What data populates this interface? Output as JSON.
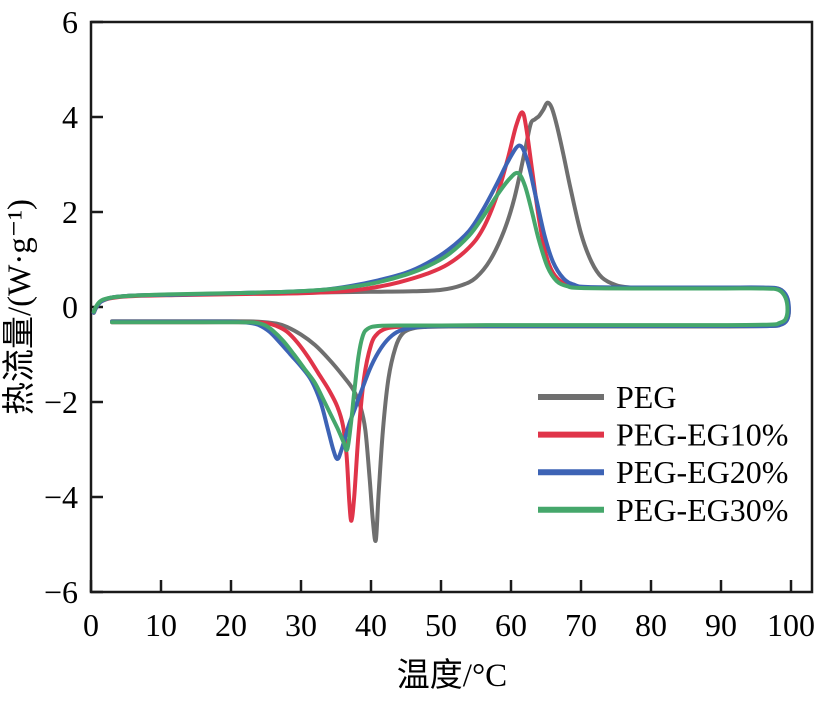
{
  "chart_data": {
    "type": "line",
    "title": "",
    "xlabel": "温度/°C",
    "ylabel": "热流量/(W·g⁻¹)",
    "xlim": [
      0,
      103
    ],
    "ylim": [
      -6,
      6
    ],
    "x_ticks": [
      0,
      10,
      20,
      30,
      40,
      50,
      60,
      70,
      80,
      90,
      100
    ],
    "y_ticks": [
      -6,
      -4,
      -2,
      0,
      2,
      4,
      6
    ],
    "grid": false,
    "legend_position": "inside-right-middle",
    "axis_color": "#1a1a1a",
    "description": "DSC heating (top, melting endotherm up) and cooling (bottom, crystallization exotherm down) loop curves",
    "peaks_summary": {
      "melting_peak_C": {
        "PEG": 65.2,
        "PEG-EG10%": 61.6,
        "PEG-EG20%": 61.2,
        "PEG-EG30%": 61.0
      },
      "melting_peak_W_per_g": {
        "PEG": 4.3,
        "PEG-EG10%": 4.1,
        "PEG-EG20%": 3.4,
        "PEG-EG30%": 2.8
      },
      "crystallization_peak_C": {
        "PEG": 40.7,
        "PEG-EG10%": 37.2,
        "PEG-EG20%": 35.2,
        "PEG-EG30%": 36.6
      },
      "crystallization_peak_W_per_g": {
        "PEG": -4.9,
        "PEG-EG10%": -4.5,
        "PEG-EG20%": -3.2,
        "PEG-EG30%": -3.0
      }
    },
    "series": [
      {
        "name": "PEG",
        "color": "#6f6f6f",
        "points": [
          [
            0.4,
            -0.12
          ],
          [
            0.8,
            0.02
          ],
          [
            1.5,
            0.13
          ],
          [
            3,
            0.2
          ],
          [
            6,
            0.24
          ],
          [
            12,
            0.26
          ],
          [
            20,
            0.28
          ],
          [
            30,
            0.3
          ],
          [
            40,
            0.32
          ],
          [
            46,
            0.33
          ],
          [
            50,
            0.36
          ],
          [
            53,
            0.46
          ],
          [
            55,
            0.62
          ],
          [
            57,
            0.98
          ],
          [
            59,
            1.6
          ],
          [
            60.5,
            2.3
          ],
          [
            62,
            3.3
          ],
          [
            62.8,
            3.85
          ],
          [
            63.4,
            3.95
          ],
          [
            64,
            4.02
          ],
          [
            64.6,
            4.15
          ],
          [
            65.2,
            4.3
          ],
          [
            65.8,
            4.2
          ],
          [
            66.5,
            3.85
          ],
          [
            67.5,
            3.2
          ],
          [
            68.5,
            2.5
          ],
          [
            70,
            1.55
          ],
          [
            71.5,
            0.95
          ],
          [
            73,
            0.62
          ],
          [
            75,
            0.46
          ],
          [
            77,
            0.41
          ],
          [
            80,
            0.4
          ],
          [
            86,
            0.4
          ],
          [
            92,
            0.4
          ],
          [
            97,
            0.4
          ],
          [
            98.6,
            0.36
          ],
          [
            99.4,
            0.18
          ],
          [
            99.7,
            -0.08
          ],
          [
            99.4,
            -0.28
          ],
          [
            98.6,
            -0.37
          ],
          [
            97,
            -0.4
          ],
          [
            90,
            -0.41
          ],
          [
            80,
            -0.41
          ],
          [
            70,
            -0.41
          ],
          [
            60,
            -0.41
          ],
          [
            52,
            -0.41
          ],
          [
            48,
            -0.42
          ],
          [
            46,
            -0.45
          ],
          [
            44.5,
            -0.56
          ],
          [
            43.5,
            -0.85
          ],
          [
            42.5,
            -1.5
          ],
          [
            41.7,
            -2.6
          ],
          [
            41.1,
            -3.9
          ],
          [
            40.7,
            -4.9
          ],
          [
            40.3,
            -4.55
          ],
          [
            39.8,
            -3.6
          ],
          [
            39.2,
            -2.6
          ],
          [
            38.5,
            -2.1
          ],
          [
            37.5,
            -1.75
          ],
          [
            36,
            -1.45
          ],
          [
            34,
            -1.1
          ],
          [
            32,
            -0.8
          ],
          [
            30,
            -0.58
          ],
          [
            28,
            -0.42
          ],
          [
            26.5,
            -0.35
          ],
          [
            24,
            -0.31
          ],
          [
            20,
            -0.3
          ],
          [
            14,
            -0.3
          ],
          [
            8,
            -0.3
          ],
          [
            3,
            -0.3
          ]
        ]
      },
      {
        "name": "PEG-EG10%",
        "color": "#e03449",
        "points": [
          [
            0.4,
            -0.12
          ],
          [
            0.8,
            0.0
          ],
          [
            1.5,
            0.12
          ],
          [
            3,
            0.19
          ],
          [
            6,
            0.23
          ],
          [
            12,
            0.25
          ],
          [
            20,
            0.27
          ],
          [
            30,
            0.29
          ],
          [
            36,
            0.33
          ],
          [
            40,
            0.4
          ],
          [
            44,
            0.52
          ],
          [
            48,
            0.7
          ],
          [
            51,
            0.9
          ],
          [
            54,
            1.25
          ],
          [
            56,
            1.65
          ],
          [
            58,
            2.35
          ],
          [
            59.5,
            3.1
          ],
          [
            60.7,
            3.8
          ],
          [
            61.6,
            4.1
          ],
          [
            62.2,
            3.75
          ],
          [
            63,
            2.9
          ],
          [
            64,
            1.85
          ],
          [
            65,
            1.1
          ],
          [
            66,
            0.72
          ],
          [
            67.5,
            0.5
          ],
          [
            69,
            0.43
          ],
          [
            72,
            0.4
          ],
          [
            80,
            0.4
          ],
          [
            90,
            0.4
          ],
          [
            96,
            0.4
          ],
          [
            98.3,
            0.37
          ],
          [
            99.3,
            0.2
          ],
          [
            99.6,
            -0.06
          ],
          [
            99.3,
            -0.27
          ],
          [
            98.4,
            -0.36
          ],
          [
            97,
            -0.39
          ],
          [
            90,
            -0.4
          ],
          [
            80,
            -0.4
          ],
          [
            70,
            -0.4
          ],
          [
            60,
            -0.4
          ],
          [
            50,
            -0.4
          ],
          [
            45,
            -0.41
          ],
          [
            42.5,
            -0.44
          ],
          [
            41,
            -0.55
          ],
          [
            40,
            -0.8
          ],
          [
            39,
            -1.5
          ],
          [
            38.2,
            -2.7
          ],
          [
            37.6,
            -4.0
          ],
          [
            37.2,
            -4.5
          ],
          [
            36.9,
            -4.1
          ],
          [
            36.5,
            -3.1
          ],
          [
            36,
            -2.5
          ],
          [
            35.2,
            -2.1
          ],
          [
            34,
            -1.75
          ],
          [
            32.5,
            -1.4
          ],
          [
            31,
            -1.05
          ],
          [
            29.5,
            -0.75
          ],
          [
            28,
            -0.52
          ],
          [
            26.5,
            -0.4
          ],
          [
            25,
            -0.34
          ],
          [
            22,
            -0.32
          ],
          [
            16,
            -0.32
          ],
          [
            9,
            -0.32
          ],
          [
            3,
            -0.32
          ]
        ]
      },
      {
        "name": "PEG-EG20%",
        "color": "#3d63b5",
        "points": [
          [
            0.4,
            -0.12
          ],
          [
            0.8,
            0.0
          ],
          [
            1.5,
            0.12
          ],
          [
            3,
            0.2
          ],
          [
            6,
            0.24
          ],
          [
            12,
            0.26
          ],
          [
            20,
            0.29
          ],
          [
            28,
            0.32
          ],
          [
            33,
            0.36
          ],
          [
            37,
            0.44
          ],
          [
            41,
            0.56
          ],
          [
            45,
            0.72
          ],
          [
            48,
            0.92
          ],
          [
            51,
            1.2
          ],
          [
            54,
            1.6
          ],
          [
            56,
            2.05
          ],
          [
            58,
            2.6
          ],
          [
            59.7,
            3.1
          ],
          [
            61.2,
            3.4
          ],
          [
            62.3,
            3.1
          ],
          [
            63.5,
            2.35
          ],
          [
            64.8,
            1.5
          ],
          [
            66,
            0.95
          ],
          [
            67.5,
            0.6
          ],
          [
            69,
            0.47
          ],
          [
            71,
            0.42
          ],
          [
            80,
            0.41
          ],
          [
            90,
            0.41
          ],
          [
            96,
            0.41
          ],
          [
            98.3,
            0.38
          ],
          [
            99.4,
            0.22
          ],
          [
            99.7,
            -0.05
          ],
          [
            99.4,
            -0.28
          ],
          [
            98.5,
            -0.37
          ],
          [
            97,
            -0.4
          ],
          [
            90,
            -0.4
          ],
          [
            80,
            -0.4
          ],
          [
            70,
            -0.4
          ],
          [
            60,
            -0.4
          ],
          [
            52,
            -0.4
          ],
          [
            47,
            -0.42
          ],
          [
            44.5,
            -0.48
          ],
          [
            43,
            -0.6
          ],
          [
            41.5,
            -0.85
          ],
          [
            40,
            -1.25
          ],
          [
            38.8,
            -1.7
          ],
          [
            37.8,
            -2.1
          ],
          [
            36.8,
            -2.5
          ],
          [
            35.8,
            -3.0
          ],
          [
            35.2,
            -3.2
          ],
          [
            34.6,
            -3.0
          ],
          [
            33.8,
            -2.55
          ],
          [
            32.8,
            -2.0
          ],
          [
            31.5,
            -1.55
          ],
          [
            30,
            -1.25
          ],
          [
            28.5,
            -1.0
          ],
          [
            27,
            -0.75
          ],
          [
            25.5,
            -0.52
          ],
          [
            24,
            -0.38
          ],
          [
            22.5,
            -0.33
          ],
          [
            20,
            -0.31
          ],
          [
            14,
            -0.31
          ],
          [
            8,
            -0.31
          ],
          [
            3,
            -0.31
          ]
        ]
      },
      {
        "name": "PEG-EG30%",
        "color": "#45a76b",
        "points": [
          [
            0.4,
            -0.1
          ],
          [
            0.8,
            0.03
          ],
          [
            1.5,
            0.14
          ],
          [
            3,
            0.2
          ],
          [
            6,
            0.24
          ],
          [
            12,
            0.27
          ],
          [
            20,
            0.29
          ],
          [
            28,
            0.32
          ],
          [
            33,
            0.36
          ],
          [
            37,
            0.42
          ],
          [
            41,
            0.52
          ],
          [
            45,
            0.68
          ],
          [
            48,
            0.85
          ],
          [
            51,
            1.1
          ],
          [
            54,
            1.5
          ],
          [
            56,
            1.9
          ],
          [
            58,
            2.35
          ],
          [
            59.8,
            2.7
          ],
          [
            61,
            2.82
          ],
          [
            62,
            2.55
          ],
          [
            63,
            2.0
          ],
          [
            64,
            1.4
          ],
          [
            65.2,
            0.85
          ],
          [
            66.5,
            0.55
          ],
          [
            68,
            0.44
          ],
          [
            70,
            0.4
          ],
          [
            80,
            0.39
          ],
          [
            90,
            0.39
          ],
          [
            96,
            0.39
          ],
          [
            98.2,
            0.36
          ],
          [
            99.2,
            0.2
          ],
          [
            99.5,
            -0.06
          ],
          [
            99.2,
            -0.26
          ],
          [
            98.3,
            -0.34
          ],
          [
            97,
            -0.37
          ],
          [
            90,
            -0.38
          ],
          [
            80,
            -0.38
          ],
          [
            70,
            -0.38
          ],
          [
            60,
            -0.38
          ],
          [
            50,
            -0.39
          ],
          [
            45,
            -0.39
          ],
          [
            41,
            -0.4
          ],
          [
            39.5,
            -0.46
          ],
          [
            38.8,
            -0.62
          ],
          [
            38.2,
            -1.05
          ],
          [
            37.6,
            -1.8
          ],
          [
            37.1,
            -2.5
          ],
          [
            36.6,
            -3.0
          ],
          [
            36.1,
            -2.85
          ],
          [
            35.2,
            -2.55
          ],
          [
            34.2,
            -2.25
          ],
          [
            33.2,
            -1.95
          ],
          [
            32,
            -1.6
          ],
          [
            30.5,
            -1.3
          ],
          [
            29,
            -1.0
          ],
          [
            27.5,
            -0.72
          ],
          [
            26,
            -0.5
          ],
          [
            24.8,
            -0.38
          ],
          [
            23.5,
            -0.33
          ],
          [
            21,
            -0.32
          ],
          [
            15,
            -0.32
          ],
          [
            8,
            -0.32
          ],
          [
            3,
            -0.32
          ]
        ]
      }
    ]
  }
}
